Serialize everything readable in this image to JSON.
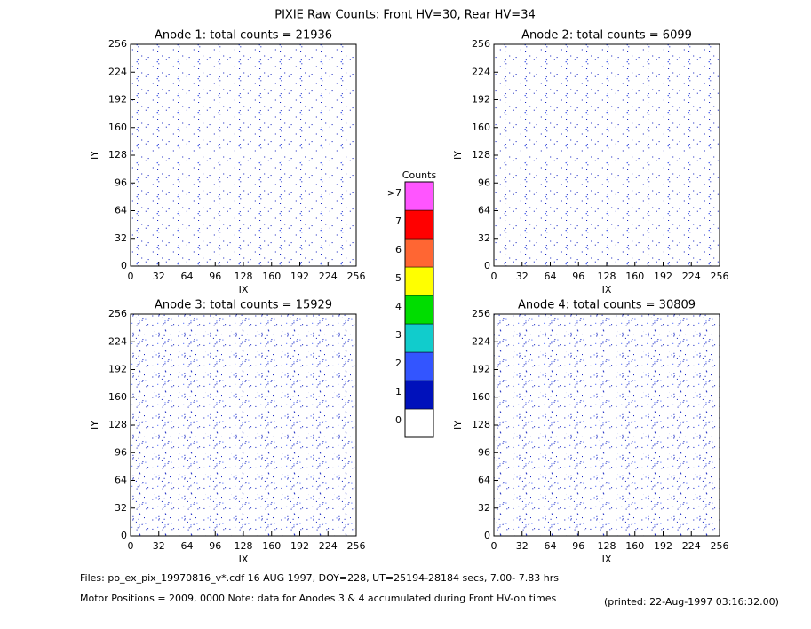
{
  "title": "PIXIE Raw Counts:  Front HV=30, Rear HV=34",
  "chart_data": [
    {
      "type": "heatmap",
      "title": "Anode 1: total counts = 21936",
      "xlabel": "IX",
      "ylabel": "IY",
      "xlim": [
        0,
        256
      ],
      "ylim": [
        0,
        256
      ],
      "xticks": [
        0,
        32,
        64,
        96,
        128,
        160,
        192,
        224,
        256
      ],
      "yticks": [
        0,
        32,
        64,
        96,
        128,
        160,
        192,
        224,
        256
      ]
    },
    {
      "type": "heatmap",
      "title": "Anode 2: total counts = 6099",
      "xlabel": "IX",
      "ylabel": "IY",
      "xlim": [
        0,
        256
      ],
      "ylim": [
        0,
        256
      ],
      "xticks": [
        0,
        32,
        64,
        96,
        128,
        160,
        192,
        224,
        256
      ],
      "yticks": [
        0,
        32,
        64,
        96,
        128,
        160,
        192,
        224,
        256
      ]
    },
    {
      "type": "heatmap",
      "title": "Anode 3: total counts = 15929",
      "xlabel": "IX",
      "ylabel": "IY",
      "xlim": [
        0,
        256
      ],
      "ylim": [
        0,
        256
      ],
      "xticks": [
        0,
        32,
        64,
        96,
        128,
        160,
        192,
        224,
        256
      ],
      "yticks": [
        0,
        32,
        64,
        96,
        128,
        160,
        192,
        224,
        256
      ]
    },
    {
      "type": "heatmap",
      "title": "Anode 4: total counts = 30809",
      "xlabel": "IX",
      "ylabel": "IY",
      "xlim": [
        0,
        256
      ],
      "ylim": [
        0,
        256
      ],
      "xticks": [
        0,
        32,
        64,
        96,
        128,
        160,
        192,
        224,
        256
      ],
      "yticks": [
        0,
        32,
        64,
        96,
        128,
        160,
        192,
        224,
        256
      ]
    }
  ],
  "colorbar": {
    "title": "Counts",
    "labels": [
      "0",
      "1",
      "2",
      "3",
      "4",
      "5",
      "6",
      "7",
      ">7"
    ],
    "colors": [
      "#ffffff",
      "#0011bb",
      "#3355ff",
      "#11cccc",
      "#00dd00",
      "#ffff00",
      "#ff6633",
      "#ff0000",
      "#ff55ff"
    ]
  },
  "footer": {
    "files": "Files: po_ex_pix_19970816_v*.cdf    16 AUG 1997, DOY=228, UT=25194-28184 secs,  7.00- 7.83 hrs",
    "motor": "Motor Positions = 2009, 0000    Note: data for Anodes 3 & 4 accumulated during Front HV-on times",
    "printed": "(printed: 22-Aug-1997 03:16:32.00)"
  }
}
